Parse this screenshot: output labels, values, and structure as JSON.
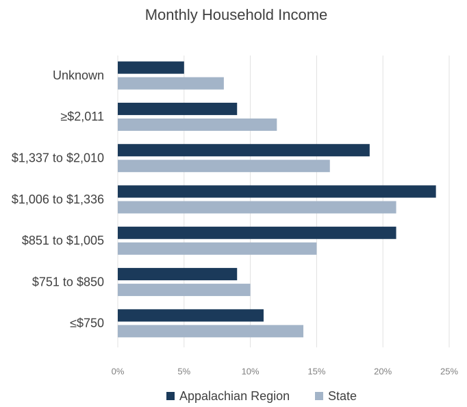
{
  "chart_data": {
    "type": "hbar",
    "title": "Monthly Household Income",
    "categories": [
      "Unknown",
      "≥$2,011",
      "$1,337 to $2,010",
      "$1,006 to $1,336",
      "$851 to $1,005",
      "$751 to $850",
      "≤$750"
    ],
    "series": [
      {
        "name": "Appalachian Region",
        "color": "#1b3a5a",
        "values": [
          5,
          9,
          19,
          24,
          21,
          9,
          11
        ]
      },
      {
        "name": "State",
        "color": "#a3b4c8",
        "values": [
          8,
          12,
          16,
          21,
          15,
          10,
          14
        ]
      }
    ],
    "xlim": [
      0,
      25
    ],
    "xticks": [
      {
        "value": 0,
        "label": "0%"
      },
      {
        "value": 5,
        "label": "5%"
      },
      {
        "value": 10,
        "label": "10%"
      },
      {
        "value": 15,
        "label": "15%"
      },
      {
        "value": 20,
        "label": "20%"
      },
      {
        "value": 25,
        "label": "25%"
      }
    ],
    "grid": true,
    "legend": "bottom"
  }
}
